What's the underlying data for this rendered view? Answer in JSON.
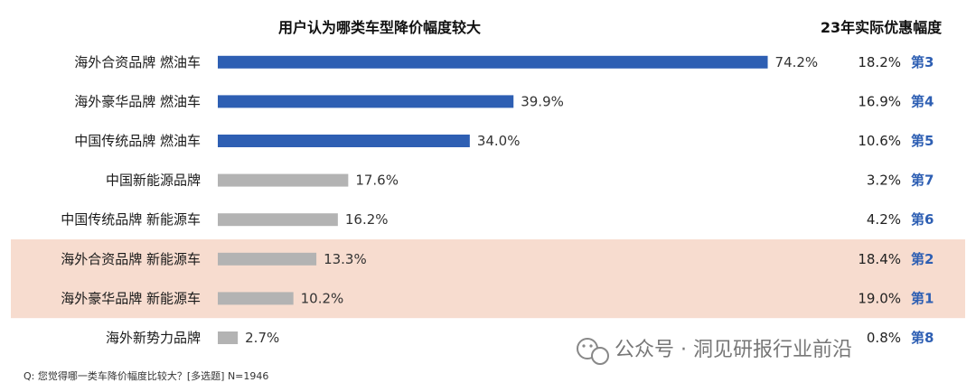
{
  "chart_data": {
    "type": "bar",
    "orientation": "horizontal",
    "title": "用户认为哪类车型降价幅度较大",
    "right_title": "23年实际优惠幅度",
    "categories": [
      "海外合资品牌 燃油车",
      "海外豪华品牌 燃油车",
      "中国传统品牌 燃油车",
      "中国新能源品牌",
      "中国传统品牌 新能源车",
      "海外合资品牌 新能源车",
      "海外豪华品牌 新能源车",
      "海外新势力品牌"
    ],
    "values": [
      74.2,
      39.9,
      34.0,
      17.6,
      16.2,
      13.3,
      10.2,
      2.7
    ],
    "value_labels": [
      "74.2%",
      "39.9%",
      "34.0%",
      "17.6%",
      "16.2%",
      "13.3%",
      "10.2%",
      "2.7%"
    ],
    "bar_colors": [
      "#2e5fb3",
      "#2e5fb3",
      "#2e5fb3",
      "#b3b3b3",
      "#b3b3b3",
      "#b3b3b3",
      "#b3b3b3",
      "#b3b3b3"
    ],
    "highlight_rows": [
      5,
      6
    ],
    "highlight_color": "#f7dccf",
    "actual_discount": [
      "18.2%",
      "16.9%",
      "10.6%",
      "3.2%",
      "4.2%",
      "18.4%",
      "19.0%",
      "0.8%"
    ],
    "actual_rank": [
      "第3",
      "第4",
      "第5",
      "第7",
      "第6",
      "第2",
      "第1",
      "第8"
    ],
    "rank_color": "#2e5fb3",
    "xlim": [
      0,
      80
    ],
    "grid": false,
    "footnote": "Q: 您觉得哪一类车降价幅度比较大？[多选题] N=1946"
  },
  "watermark": {
    "text": "公众号 · 洞见研报行业前沿",
    "icon": "wechat-icon"
  }
}
